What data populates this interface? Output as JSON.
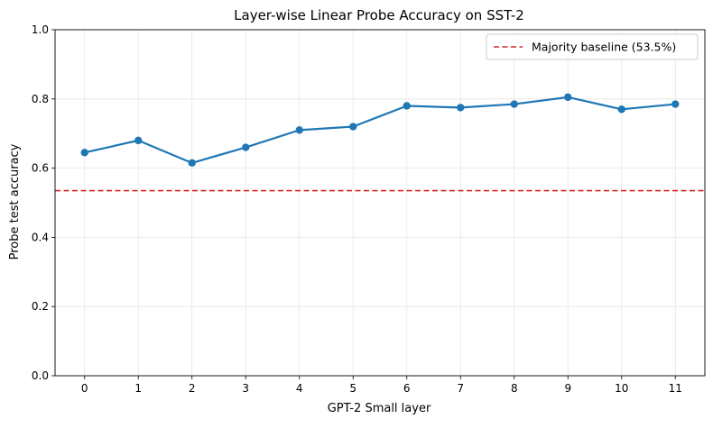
{
  "colors": {
    "series": "#1f77b4",
    "baseline": "#d62728",
    "grid": "#e6e6e6",
    "axis": "#000000"
  },
  "chart_data": {
    "type": "line",
    "title": "Layer-wise Linear Probe Accuracy on SST-2",
    "xlabel": "GPT-2 Small layer",
    "ylabel": "Probe test accuracy",
    "x": [
      0,
      1,
      2,
      3,
      4,
      5,
      6,
      7,
      8,
      9,
      10,
      11
    ],
    "x_tick_labels": [
      "0",
      "1",
      "2",
      "3",
      "4",
      "5",
      "6",
      "7",
      "8",
      "9",
      "10",
      "11"
    ],
    "series": [
      {
        "values": [
          0.645,
          0.68,
          0.615,
          0.66,
          0.71,
          0.72,
          0.78,
          0.775,
          0.785,
          0.805,
          0.77,
          0.785
        ]
      }
    ],
    "baseline": {
      "name": "Majority baseline (53.5%)",
      "value": 0.535,
      "style": "dashed"
    },
    "ylim": [
      0,
      1.0
    ],
    "xlim": [
      -0.55,
      11.55
    ],
    "y_ticks": [
      0.0,
      0.2,
      0.4,
      0.6,
      0.8,
      1.0
    ],
    "y_tick_labels": [
      "0.0",
      "0.2",
      "0.4",
      "0.6",
      "0.8",
      "1.0"
    ],
    "grid": true,
    "legend_position": "upper-right"
  }
}
